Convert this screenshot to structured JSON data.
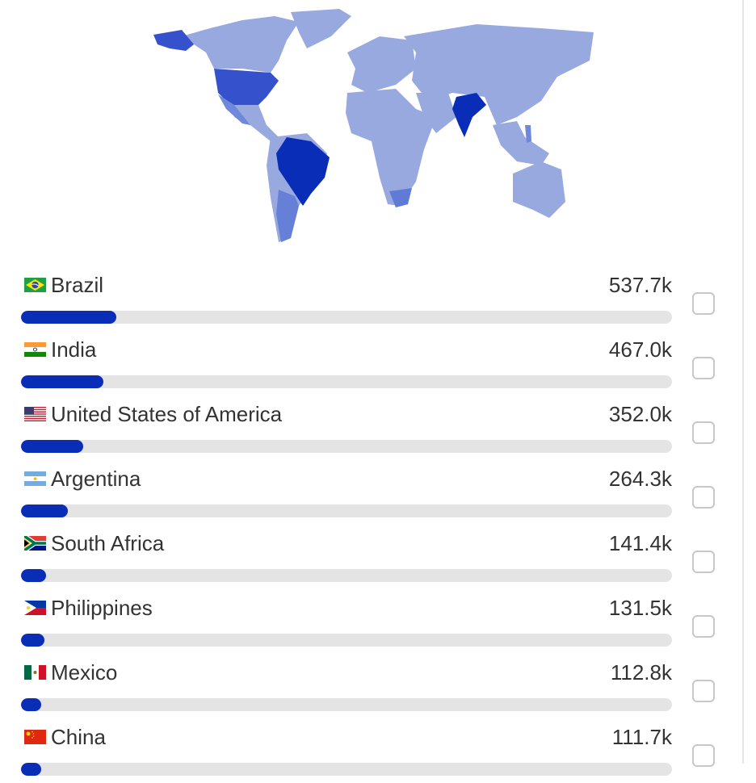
{
  "colors": {
    "accent": "#0a2db8",
    "track": "#e4e4e4",
    "map_base": "#98a9e0",
    "map_usa": "#3552cc",
    "map_top": "#0a2db8",
    "map_mid": "#6680d8"
  },
  "countries": [
    {
      "name": "Brazil",
      "value": "537.7k",
      "share": 0.146,
      "flag": "brazil-flag"
    },
    {
      "name": "India",
      "value": "467.0k",
      "share": 0.127,
      "flag": "india-flag"
    },
    {
      "name": "United States of America",
      "value": "352.0k",
      "share": 0.096,
      "flag": "usa-flag"
    },
    {
      "name": "Argentina",
      "value": "264.3k",
      "share": 0.072,
      "flag": "argentina-flag"
    },
    {
      "name": "South Africa",
      "value": "141.4k",
      "share": 0.038,
      "flag": "south-africa-flag"
    },
    {
      "name": "Philippines",
      "value": "131.5k",
      "share": 0.036,
      "flag": "philippines-flag"
    },
    {
      "name": "Mexico",
      "value": "112.8k",
      "share": 0.031,
      "flag": "mexico-flag"
    },
    {
      "name": "China",
      "value": "111.7k",
      "share": 0.031,
      "flag": "china-flag"
    }
  ]
}
